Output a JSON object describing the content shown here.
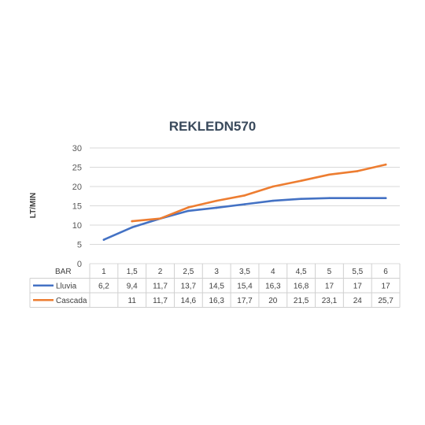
{
  "chart_data": {
    "type": "line",
    "title": "REKLEDN570",
    "ylabel": "LT/MIN",
    "xlabel": "BAR",
    "ylim": [
      0,
      30
    ],
    "yticks": [
      "0",
      "5",
      "10",
      "15",
      "20",
      "25",
      "30"
    ],
    "categories": [
      "1",
      "1,5",
      "2",
      "2,5",
      "3",
      "3,5",
      "4",
      "4,5",
      "5",
      "5,5",
      "6"
    ],
    "grid": true,
    "legend": "data-table",
    "series": [
      {
        "name": "Lluvia",
        "color": "#4472c4",
        "values": [
          6.2,
          9.4,
          11.7,
          13.7,
          14.5,
          15.4,
          16.3,
          16.8,
          17,
          17,
          17
        ],
        "labels": [
          "6,2",
          "9,4",
          "11,7",
          "13,7",
          "14,5",
          "15,4",
          "16,3",
          "16,8",
          "17",
          "17",
          "17"
        ]
      },
      {
        "name": "Cascada",
        "color": "#ed7d31",
        "values": [
          null,
          11,
          11.7,
          14.6,
          16.3,
          17.7,
          20,
          21.5,
          23.1,
          24,
          25.7
        ],
        "labels": [
          "",
          "11",
          "11,7",
          "14,6",
          "16,3",
          "17,7",
          "20",
          "21,5",
          "23,1",
          "24",
          "25,7"
        ]
      }
    ]
  }
}
